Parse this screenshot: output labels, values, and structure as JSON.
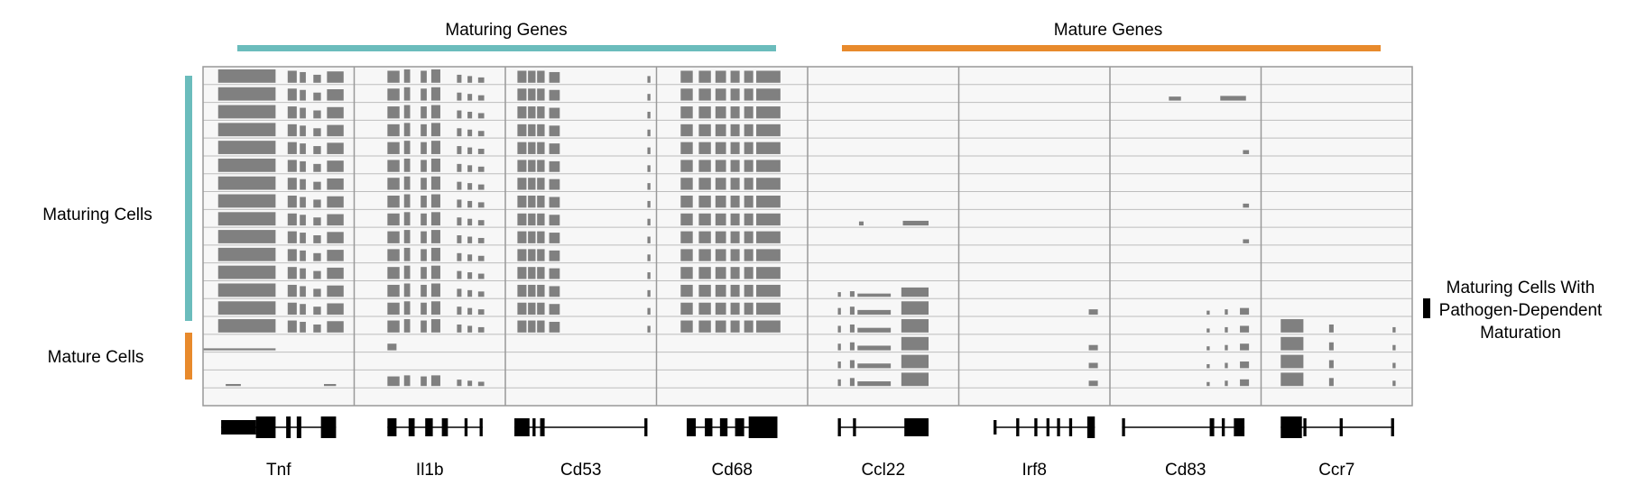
{
  "headers": {
    "maturing_genes": "Maturing Genes",
    "mature_genes": "Mature Genes"
  },
  "row_groups": {
    "maturing_cells": "Maturing Cells",
    "mature_cells": "Mature Cells",
    "pathogen_line1": "Maturing Cells With",
    "pathogen_line2": "Pathogen-Dependent",
    "pathogen_line3": "Maturation"
  },
  "genes": [
    "Tnf",
    "Il1b",
    "Cd53",
    "Cd68",
    "Ccl22",
    "Irf8",
    "Cd83",
    "Ccr7"
  ],
  "colors": {
    "maturing": "#6bbcbc",
    "mature": "#e88a2c",
    "coverage": "#808080",
    "track_bg": "#f7f7f7",
    "grid": "#999999",
    "gene_model": "#000000"
  }
}
